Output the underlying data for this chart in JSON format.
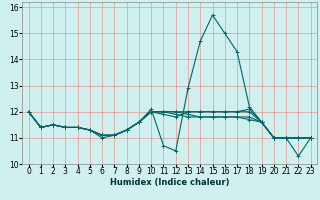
{
  "title": "",
  "xlabel": "Humidex (Indice chaleur)",
  "ylabel": "",
  "background_color": "#cff0ee",
  "grid_color": "#f08080",
  "line_color": "#006666",
  "xlim": [
    -0.5,
    23.5
  ],
  "ylim": [
    10,
    16.2
  ],
  "xticks": [
    0,
    1,
    2,
    3,
    4,
    5,
    6,
    7,
    8,
    9,
    10,
    11,
    12,
    13,
    14,
    15,
    16,
    17,
    18,
    19,
    20,
    21,
    22,
    23
  ],
  "yticks": [
    10,
    11,
    12,
    13,
    14,
    15,
    16
  ],
  "lines": [
    {
      "x": [
        0,
        1,
        2,
        3,
        4,
        5,
        6,
        7,
        8,
        9,
        10,
        11,
        12,
        13,
        14,
        15,
        16,
        17,
        18,
        19,
        20,
        21,
        22,
        23
      ],
      "y": [
        12.0,
        11.4,
        11.5,
        11.4,
        11.4,
        11.3,
        11.0,
        11.1,
        11.3,
        11.6,
        12.1,
        10.7,
        10.5,
        12.9,
        14.7,
        15.7,
        15.0,
        14.3,
        12.2,
        11.6,
        11.0,
        11.0,
        10.3,
        11.0
      ]
    },
    {
      "x": [
        0,
        1,
        2,
        3,
        4,
        5,
        6,
        7,
        8,
        9,
        10,
        11,
        12,
        13,
        14,
        15,
        16,
        17,
        18,
        19,
        20,
        21,
        22,
        23
      ],
      "y": [
        12.0,
        11.4,
        11.5,
        11.4,
        11.4,
        11.3,
        11.1,
        11.1,
        11.3,
        11.6,
        12.0,
        11.9,
        11.8,
        12.0,
        12.0,
        12.0,
        12.0,
        12.0,
        12.1,
        11.6,
        11.0,
        11.0,
        11.0,
        11.0
      ]
    },
    {
      "x": [
        0,
        1,
        2,
        3,
        4,
        5,
        6,
        7,
        8,
        9,
        10,
        11,
        12,
        13,
        14,
        15,
        16,
        17,
        18,
        19,
        20,
        21,
        22,
        23
      ],
      "y": [
        12.0,
        11.4,
        11.5,
        11.4,
        11.4,
        11.3,
        11.1,
        11.1,
        11.3,
        11.6,
        12.0,
        12.0,
        11.9,
        11.8,
        11.8,
        11.8,
        11.8,
        11.8,
        11.8,
        11.6,
        11.0,
        11.0,
        11.0,
        11.0
      ]
    },
    {
      "x": [
        0,
        1,
        2,
        3,
        4,
        5,
        6,
        7,
        8,
        9,
        10,
        11,
        12,
        13,
        14,
        15,
        16,
        17,
        18,
        19,
        20,
        21,
        22,
        23
      ],
      "y": [
        12.0,
        11.4,
        11.5,
        11.4,
        11.4,
        11.3,
        11.1,
        11.1,
        11.3,
        11.6,
        12.0,
        12.0,
        12.0,
        11.9,
        11.8,
        11.8,
        11.8,
        11.8,
        11.7,
        11.6,
        11.0,
        11.0,
        11.0,
        11.0
      ]
    },
    {
      "x": [
        0,
        1,
        2,
        3,
        4,
        5,
        6,
        7,
        8,
        9,
        10,
        11,
        12,
        13,
        14,
        15,
        16,
        17,
        18,
        19,
        20,
        21,
        22,
        23
      ],
      "y": [
        12.0,
        11.4,
        11.5,
        11.4,
        11.4,
        11.3,
        11.1,
        11.1,
        11.3,
        11.6,
        12.0,
        12.0,
        12.0,
        12.0,
        12.0,
        12.0,
        12.0,
        12.0,
        12.0,
        11.6,
        11.0,
        11.0,
        11.0,
        11.0
      ]
    }
  ],
  "xlabel_fontsize": 6,
  "tick_fontsize": 5.5,
  "linewidth": 0.8,
  "markersize": 2.5
}
